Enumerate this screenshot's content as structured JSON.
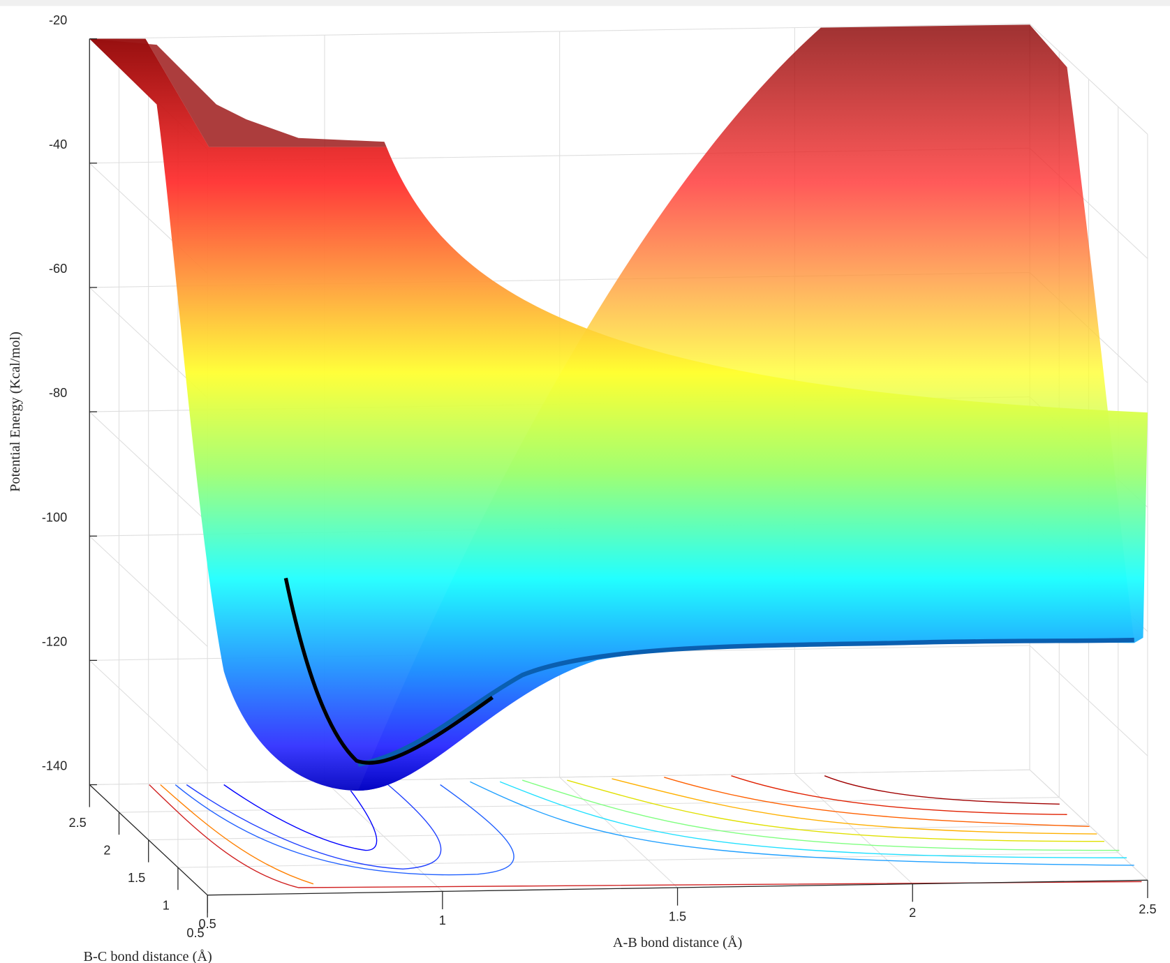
{
  "chart_data": {
    "type": "surface",
    "xlabel": "A-B bond distance (Å)",
    "ylabel": "B-C bond distance (Å)",
    "zlabel": "Potential Energy (Kcal/mol)",
    "xlim": [
      0.5,
      2.5
    ],
    "xticks": [
      0.5,
      1,
      1.5,
      2,
      2.5
    ],
    "ylim": [
      0.5,
      2.5
    ],
    "yticks": [
      0.5,
      1,
      1.5,
      2,
      2.5
    ],
    "zlim": [
      -140,
      -20
    ],
    "zticks": [
      -140,
      -120,
      -100,
      -80,
      -60,
      -40,
      -20
    ],
    "colormap": "jet",
    "grid": true
  }
}
